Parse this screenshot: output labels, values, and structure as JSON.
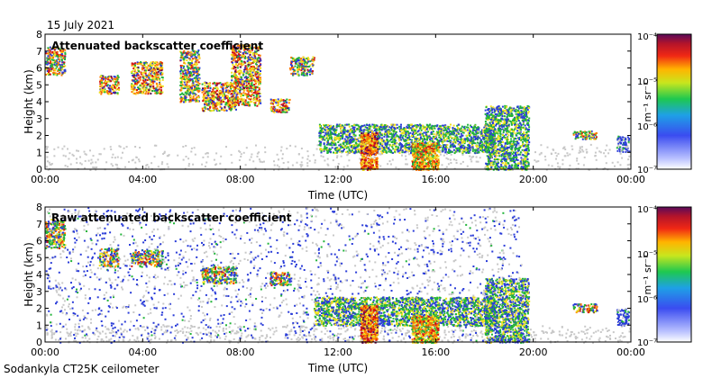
{
  "date_label": "15 July 2021",
  "instrument_label": "Sodankyla CT25K ceilometer",
  "colors": {
    "frame": "#000000",
    "grid_tick": "#000000",
    "noise": "#c8c8c8",
    "low_blue": "#2a3cd8",
    "mid_green": "#22b43a",
    "high_yellow": "#f0e020",
    "peak_orange": "#ff7a00",
    "peak_red": "#d21414",
    "max_purple": "#5a0a5a"
  },
  "chart_data": [
    {
      "type": "heatmap",
      "title": "Attenuated backscatter coefficient",
      "xlabel": "Time (UTC)",
      "ylabel": "Height (km)",
      "x_ticks": [
        "00:00",
        "04:00",
        "08:00",
        "12:00",
        "16:00",
        "20:00",
        "00:00"
      ],
      "x_range_hours": [
        0,
        24
      ],
      "y_ticks": [
        "0",
        "1",
        "2",
        "3",
        "4",
        "5",
        "6",
        "7",
        "8"
      ],
      "ylim": [
        0,
        8
      ],
      "colorbar": {
        "scale": "log",
        "unit": "m⁻¹ sr⁻¹",
        "tick_labels": [
          "10⁻⁴",
          "10⁻⁵",
          "10⁻⁶",
          "10⁻⁷"
        ],
        "range": [
          1e-07,
          0.0001
        ]
      },
      "features": [
        {
          "kind": "cloud",
          "start_h": 0.0,
          "end_h": 0.8,
          "base_km": 5.6,
          "top_km": 7.3,
          "level": 4
        },
        {
          "kind": "cloud",
          "start_h": 2.2,
          "end_h": 3.0,
          "base_km": 4.5,
          "top_km": 5.6,
          "level": 5
        },
        {
          "kind": "cloud",
          "start_h": 3.5,
          "end_h": 4.8,
          "base_km": 4.5,
          "top_km": 6.4,
          "level": 5
        },
        {
          "kind": "cloud",
          "start_h": 5.5,
          "end_h": 6.3,
          "base_km": 4.0,
          "top_km": 7.1,
          "level": 4
        },
        {
          "kind": "cloud",
          "start_h": 6.4,
          "end_h": 7.8,
          "base_km": 3.5,
          "top_km": 5.2,
          "level": 5
        },
        {
          "kind": "cloud",
          "start_h": 7.6,
          "end_h": 8.8,
          "base_km": 3.8,
          "top_km": 7.4,
          "level": 5
        },
        {
          "kind": "cloud",
          "start_h": 9.2,
          "end_h": 10.0,
          "base_km": 3.4,
          "top_km": 4.2,
          "level": 5
        },
        {
          "kind": "cloud",
          "start_h": 10.0,
          "end_h": 11.0,
          "base_km": 5.6,
          "top_km": 6.7,
          "level": 4
        },
        {
          "kind": "layer",
          "start_h": 11.2,
          "end_h": 18.4,
          "base_km": 1.0,
          "top_km": 2.7,
          "level": 3
        },
        {
          "kind": "precip",
          "start_h": 12.9,
          "end_h": 13.6,
          "base_km": 0.0,
          "top_km": 2.2,
          "level": 5
        },
        {
          "kind": "precip",
          "start_h": 15.0,
          "end_h": 16.1,
          "base_km": 0.0,
          "top_km": 1.6,
          "level": 4
        },
        {
          "kind": "layer",
          "start_h": 18.0,
          "end_h": 19.8,
          "base_km": 0.0,
          "top_km": 3.8,
          "level": 3
        },
        {
          "kind": "cloud",
          "start_h": 21.6,
          "end_h": 22.6,
          "base_km": 1.8,
          "top_km": 2.3,
          "level": 4
        },
        {
          "kind": "cloud",
          "start_h": 23.4,
          "end_h": 23.9,
          "base_km": 1.0,
          "top_km": 2.0,
          "level": 2
        }
      ]
    },
    {
      "type": "heatmap",
      "title": "Raw attenuated backscatter coefficient",
      "xlabel": "Time (UTC)",
      "ylabel": "Height (km)",
      "x_ticks": [
        "00:00",
        "04:00",
        "08:00",
        "12:00",
        "16:00",
        "20:00",
        "00:00"
      ],
      "x_range_hours": [
        0,
        24
      ],
      "y_ticks": [
        "0",
        "1",
        "2",
        "3",
        "4",
        "5",
        "6",
        "7",
        "8"
      ],
      "ylim": [
        0,
        8
      ],
      "colorbar": {
        "scale": "log",
        "unit": "m⁻¹ sr⁻¹",
        "tick_labels": [
          "10⁻⁴",
          "10⁻⁵",
          "10⁻⁶",
          "10⁻⁷"
        ],
        "range": [
          1e-07,
          0.0001
        ]
      },
      "features": [
        {
          "kind": "noise_band",
          "start_h": 0.0,
          "end_h": 19.5,
          "base_km": 0.0,
          "top_km": 8.0,
          "level": 1
        },
        {
          "kind": "cloud",
          "start_h": 0.0,
          "end_h": 0.8,
          "base_km": 5.6,
          "top_km": 7.3,
          "level": 4
        },
        {
          "kind": "cloud",
          "start_h": 2.2,
          "end_h": 3.0,
          "base_km": 4.5,
          "top_km": 5.6,
          "level": 4
        },
        {
          "kind": "cloud",
          "start_h": 3.5,
          "end_h": 4.8,
          "base_km": 4.5,
          "top_km": 5.5,
          "level": 4
        },
        {
          "kind": "cloud",
          "start_h": 6.4,
          "end_h": 7.8,
          "base_km": 3.5,
          "top_km": 4.5,
          "level": 4
        },
        {
          "kind": "cloud",
          "start_h": 9.2,
          "end_h": 10.0,
          "base_km": 3.4,
          "top_km": 4.2,
          "level": 4
        },
        {
          "kind": "layer",
          "start_h": 11.0,
          "end_h": 18.4,
          "base_km": 1.0,
          "top_km": 2.7,
          "level": 3
        },
        {
          "kind": "precip",
          "start_h": 12.9,
          "end_h": 13.6,
          "base_km": 0.0,
          "top_km": 2.2,
          "level": 5
        },
        {
          "kind": "precip",
          "start_h": 15.0,
          "end_h": 16.1,
          "base_km": 0.0,
          "top_km": 1.6,
          "level": 4
        },
        {
          "kind": "layer",
          "start_h": 18.0,
          "end_h": 19.8,
          "base_km": 0.0,
          "top_km": 3.8,
          "level": 3
        },
        {
          "kind": "cloud",
          "start_h": 21.6,
          "end_h": 22.6,
          "base_km": 1.8,
          "top_km": 2.3,
          "level": 4
        },
        {
          "kind": "cloud",
          "start_h": 23.4,
          "end_h": 23.9,
          "base_km": 1.0,
          "top_km": 2.0,
          "level": 2
        }
      ]
    }
  ]
}
